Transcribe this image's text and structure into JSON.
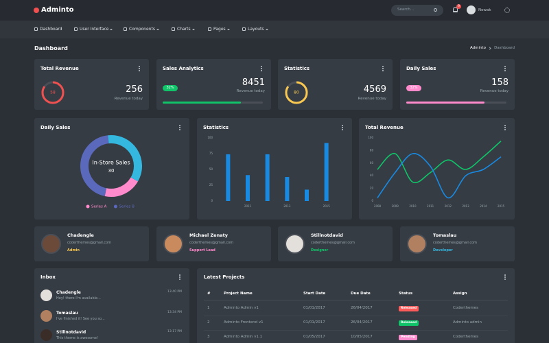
{
  "brand": "Adminto",
  "search_placeholder": "Search...",
  "notification_count": "9",
  "user_name": "Nowak",
  "nav": [
    "Dashboard",
    "User Interface",
    "Components",
    "Charts",
    "Pages",
    "Layouts"
  ],
  "page_title": "Dashboard",
  "breadcrumb": [
    "Adminto",
    "Dashboard"
  ],
  "stat_cards": [
    {
      "title": "Total Revenue",
      "badge": "58",
      "value": "256",
      "caption": "Revenue today"
    },
    {
      "title": "Sales Analytics",
      "badge": "32%",
      "value": "8451",
      "caption": "Revenue today"
    },
    {
      "title": "Statistics",
      "badge": "80",
      "value": "4569",
      "caption": "Revenue today"
    },
    {
      "title": "Daily Sales",
      "badge": "32%",
      "value": "158",
      "caption": "Revenue today"
    }
  ],
  "chart_data": [
    {
      "type": "donut",
      "title": "Daily Sales",
      "center_label": "In-Store Sales",
      "center_value": 30,
      "categories": [
        "Series A",
        "Series B",
        null
      ],
      "values": [
        20,
        45,
        35
      ],
      "colors": [
        "#ff8acc",
        "#5b69bc",
        "#35b8e0"
      ]
    },
    {
      "type": "bar",
      "title": "Statistics",
      "categories": [
        null,
        "2011",
        null,
        "2013",
        null,
        "2015"
      ],
      "values": [
        74,
        41,
        74,
        38,
        18,
        92
      ],
      "color": "#188ae2",
      "ylim": [
        0,
        100
      ],
      "yticks": [
        0,
        25,
        50,
        75,
        100
      ],
      "grid": false
    },
    {
      "type": "line",
      "title": "Total Revenue",
      "categories": [
        "2008",
        "2009",
        "2010",
        "2011",
        "2012",
        "2013",
        "2014",
        "2015"
      ],
      "series": [
        {
          "color": "#10c469",
          "values": [
            50,
            75,
            30,
            45,
            65,
            50,
            70,
            95
          ]
        },
        {
          "color": "#188ae2",
          "values": [
            5,
            45,
            75,
            55,
            5,
            40,
            50,
            70
          ]
        }
      ],
      "ylim": [
        0,
        100
      ],
      "yticks": [
        0,
        20,
        40,
        60,
        80,
        100
      ],
      "grid": false
    }
  ],
  "contacts": [
    {
      "name": "Chadengle",
      "email": "coderthemes@gmail.com",
      "role": "Admin"
    },
    {
      "name": "Michael Zenaty",
      "email": "coderthemes@gmail.com",
      "role": "Support Lead"
    },
    {
      "name": "Stillnotdavid",
      "email": "coderthemes@gmail.com",
      "role": "Designer"
    },
    {
      "name": "Tomaslau",
      "email": "coderthemes@gmail.com",
      "role": "Developer"
    }
  ],
  "inbox": {
    "title": "Inbox",
    "messages": [
      {
        "name": "Chadengle",
        "text": "Hey! there I'm available...",
        "time": "13:40 PM"
      },
      {
        "name": "Tomaslau",
        "text": "I've finished it! See you so...",
        "time": "13:34 PM"
      },
      {
        "name": "Stillnotdavid",
        "text": "This theme is awesome!",
        "time": "13:17 PM"
      }
    ]
  },
  "projects": {
    "title": "Latest Projects",
    "headers": [
      "#",
      "Project Name",
      "Start Date",
      "Due Date",
      "Status",
      "Assign"
    ],
    "rows": [
      [
        "1",
        "Adminto Admin v1",
        "01/01/2017",
        "26/04/2017",
        "Released",
        "Coderthemes"
      ],
      [
        "2",
        "Adminto Frontend v1",
        "01/01/2017",
        "26/04/2017",
        "Released",
        "Adminto admin"
      ],
      [
        "3",
        "Adminto Admin v1.1",
        "01/05/2017",
        "10/05/2017",
        "Pending",
        "Coderthemes"
      ]
    ]
  }
}
